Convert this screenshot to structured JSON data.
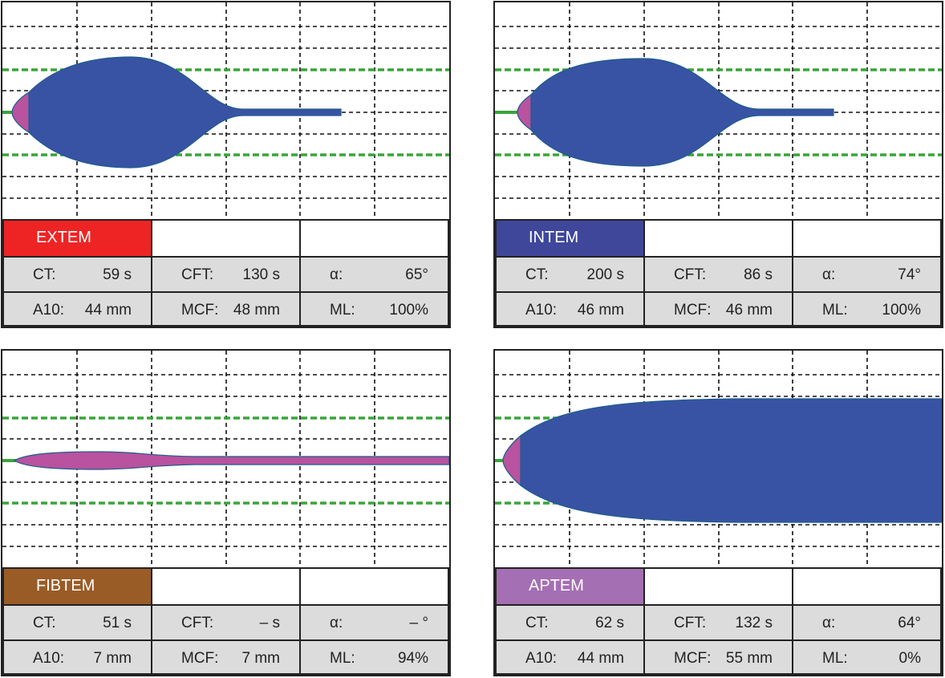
{
  "panels": [
    {
      "name": "EXTEM",
      "color": "#ee2424",
      "rows": [
        [
          {
            "k": "CT:",
            "v": "59 s"
          },
          {
            "k": "CFT:",
            "v": "130 s"
          },
          {
            "k": "α:",
            "v": "65°"
          }
        ],
        [
          {
            "k": "A10:",
            "v": "44 mm"
          },
          {
            "k": "MCF:",
            "v": "48 mm"
          },
          {
            "k": "ML:",
            "v": "100%"
          }
        ]
      ]
    },
    {
      "name": "INTEM",
      "color": "#3f479b",
      "rows": [
        [
          {
            "k": "CT:",
            "v": "200 s"
          },
          {
            "k": "CFT:",
            "v": "86 s"
          },
          {
            "k": "α:",
            "v": "74°"
          }
        ],
        [
          {
            "k": "A10:",
            "v": "46 mm"
          },
          {
            "k": "MCF:",
            "v": "46 mm"
          },
          {
            "k": "ML:",
            "v": "100%"
          }
        ]
      ]
    },
    {
      "name": "FIBTEM",
      "color": "#9a5c26",
      "rows": [
        [
          {
            "k": "CT:",
            "v": "51 s"
          },
          {
            "k": "CFT:",
            "v": "– s"
          },
          {
            "k": "α:",
            "v": "– °"
          }
        ],
        [
          {
            "k": "A10:",
            "v": "7 mm"
          },
          {
            "k": "MCF:",
            "v": "7 mm"
          },
          {
            "k": "ML:",
            "v": "94%"
          }
        ]
      ]
    },
    {
      "name": "APTEM",
      "color": "#a46fb3",
      "rows": [
        [
          {
            "k": "CT:",
            "v": "62 s"
          },
          {
            "k": "CFT:",
            "v": "132 s"
          },
          {
            "k": "α:",
            "v": "64°"
          }
        ],
        [
          {
            "k": "A10:",
            "v": "44 mm"
          },
          {
            "k": "MCF:",
            "v": "55 mm"
          },
          {
            "k": "ML:",
            "v": "0%"
          }
        ]
      ]
    }
  ],
  "colors": {
    "clot": "#3853a4",
    "early": "#b9529f",
    "ref": "#3aa43a"
  }
}
